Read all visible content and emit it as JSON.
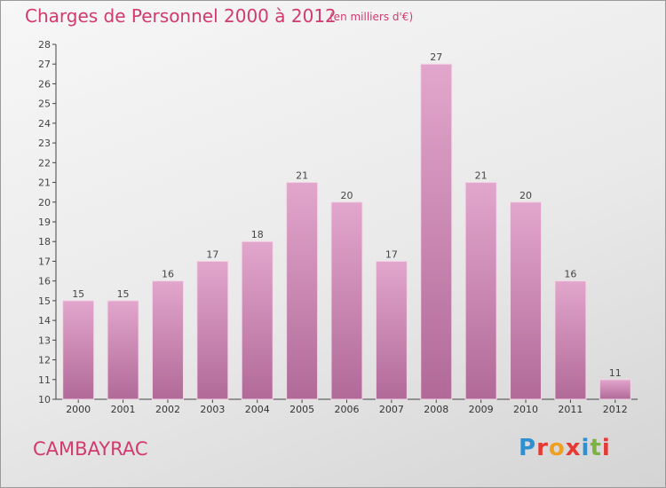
{
  "header": {
    "title": "Charges de Personnel 2000 à 2012",
    "subtitle": "(en milliers d'€)"
  },
  "footer": {
    "commune": "CAMBAYRAC",
    "logo": "Proxiti"
  },
  "colors": {
    "title": "#d23a6e",
    "bar_top": "#e2a6cc",
    "bar_bottom": "#b16a98",
    "axis": "#444444"
  },
  "chart_data": {
    "type": "bar",
    "categories": [
      "2000",
      "2001",
      "2002",
      "2003",
      "2004",
      "2005",
      "2006",
      "2007",
      "2008",
      "2009",
      "2010",
      "2011",
      "2012"
    ],
    "values": [
      15,
      15,
      16,
      17,
      18,
      21,
      20,
      17,
      27,
      21,
      20,
      16,
      11
    ],
    "title": "Charges de Personnel 2000 à 2012",
    "subtitle": "(en milliers d'€)",
    "xlabel": "",
    "ylabel": "",
    "ylim": [
      10,
      28
    ],
    "y_ticks": [
      10,
      11,
      12,
      13,
      14,
      15,
      16,
      17,
      18,
      19,
      20,
      21,
      22,
      23,
      24,
      25,
      26,
      27,
      28
    ],
    "grid": false,
    "data_labels": true
  }
}
